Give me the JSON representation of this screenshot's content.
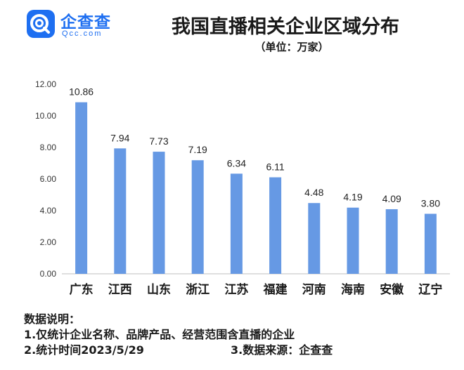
{
  "brand": {
    "name": "企查查",
    "domain": "Qcc.com",
    "icon": "qcc-logo-icon",
    "color": "#1e6ff1"
  },
  "header": {
    "title": "我国直播相关企业区域分布",
    "unit": "（单位：万家）"
  },
  "chart_data": {
    "type": "bar",
    "title": "我国直播相关企业区域分布",
    "unit": "（单位：万家）",
    "categories": [
      "广东",
      "江西",
      "山东",
      "浙江",
      "江苏",
      "福建",
      "河南",
      "海南",
      "安徽",
      "辽宁"
    ],
    "values": [
      10.86,
      7.94,
      7.73,
      7.19,
      6.34,
      6.11,
      4.48,
      4.19,
      4.09,
      3.8
    ],
    "value_labels": [
      "10.86",
      "7.94",
      "7.73",
      "7.19",
      "6.34",
      "6.11",
      "4.48",
      "4.19",
      "4.09",
      "3.80"
    ],
    "ylim": [
      0,
      12
    ],
    "yticks": [
      0,
      2,
      4,
      6,
      8,
      10,
      12
    ],
    "ytick_labels": [
      "0.00",
      "2.00",
      "4.00",
      "6.00",
      "8.00",
      "10.00",
      "12.00"
    ],
    "grid": false,
    "bar_color": "#6699e4"
  },
  "notes": {
    "heading": "数据说明：",
    "line1": "1.仅统计企业名称、品牌产品、经营范围含直播的企业",
    "line2": "2.统计时间2023/5/29",
    "line3": "3.数据来源：企查查"
  }
}
